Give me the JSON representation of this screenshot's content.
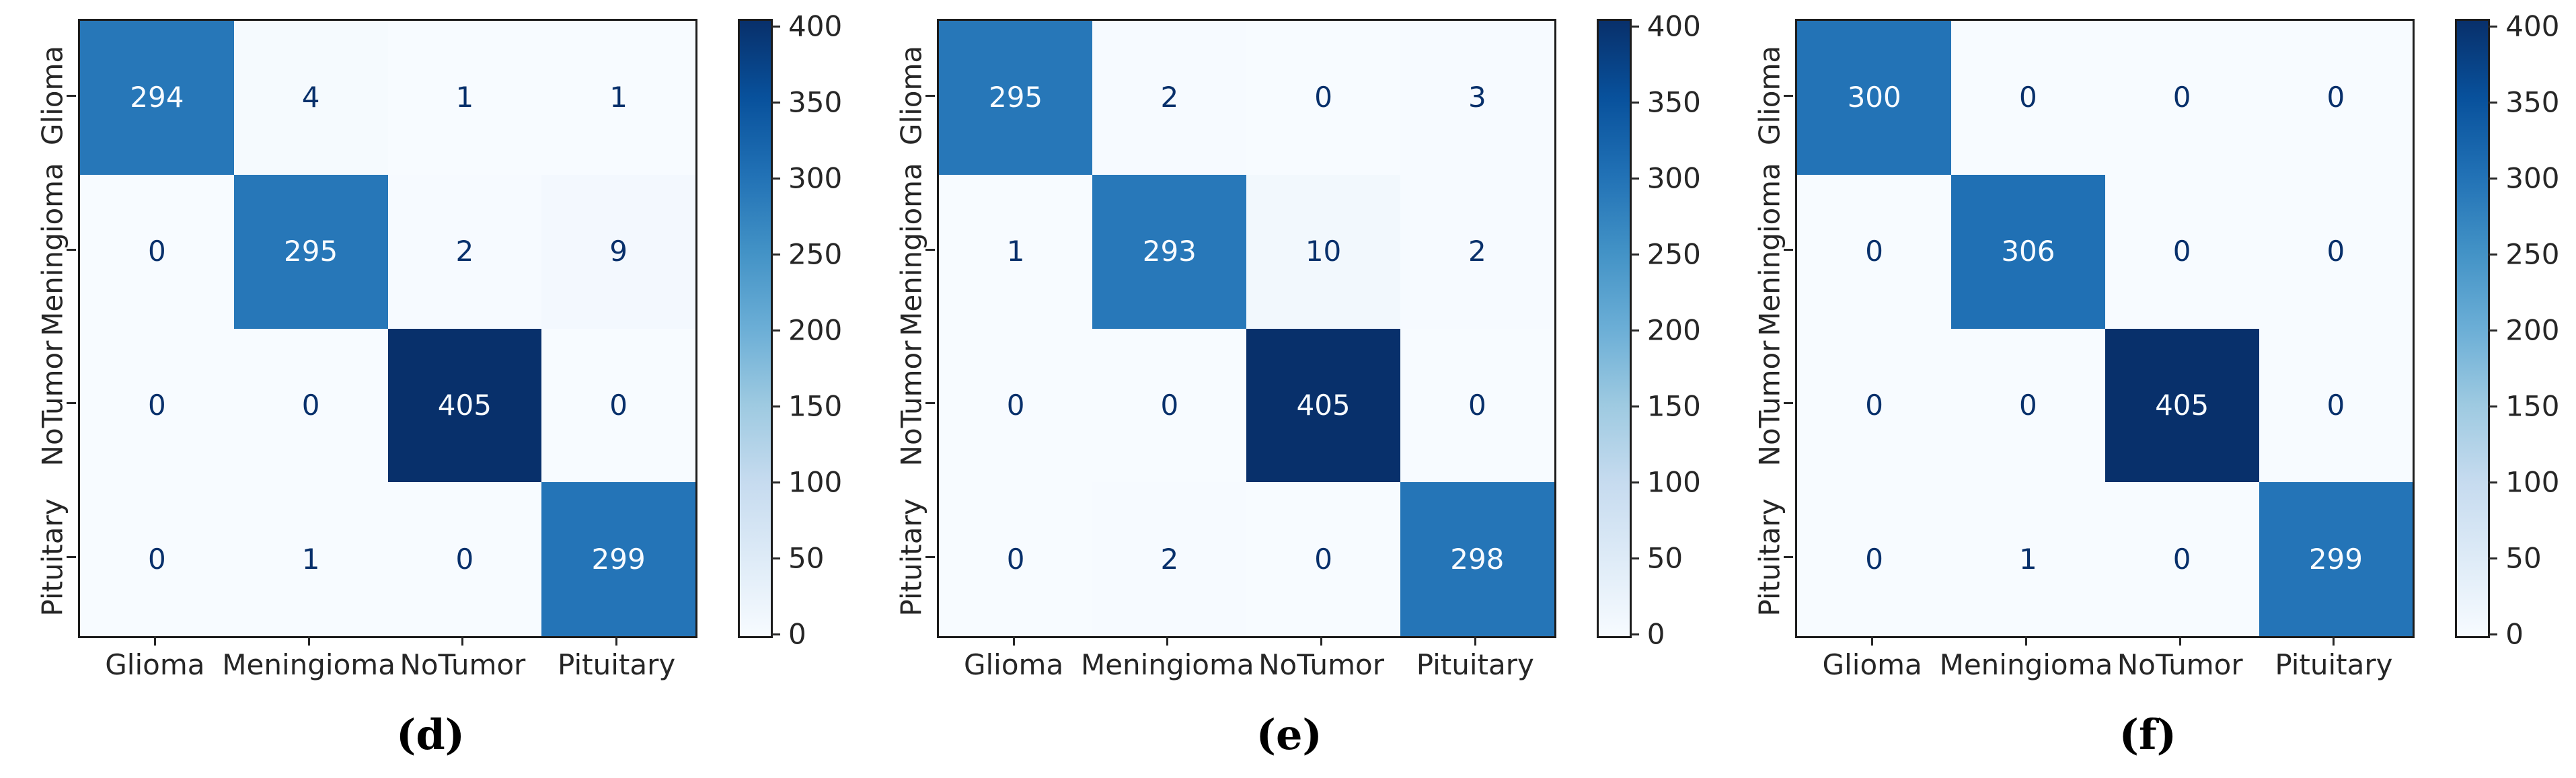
{
  "figure": {
    "classes": [
      "Glioma",
      "Meningioma",
      "NoTumor",
      "Pituitary"
    ],
    "colorbar": {
      "ticks": [
        400,
        350,
        300,
        250,
        200,
        150,
        100,
        50,
        0
      ],
      "vmin": 0,
      "vmax": 405
    },
    "colormap": {
      "name": "Blues",
      "anchors": [
        "#f7fbff",
        "#deebf7",
        "#c6dbef",
        "#9ecae1",
        "#6baed6",
        "#4292c6",
        "#2171b5",
        "#08519c",
        "#08306b"
      ]
    },
    "text_colors": {
      "light": "#f7fbff",
      "dark": "#08306b"
    },
    "panels": [
      {
        "caption": "(d)",
        "matrix": [
          [
            294,
            4,
            1,
            1
          ],
          [
            0,
            295,
            2,
            9
          ],
          [
            0,
            0,
            405,
            0
          ],
          [
            0,
            1,
            0,
            299
          ]
        ]
      },
      {
        "caption": "(e)",
        "matrix": [
          [
            295,
            2,
            0,
            3
          ],
          [
            1,
            293,
            10,
            2
          ],
          [
            0,
            0,
            405,
            0
          ],
          [
            0,
            2,
            0,
            298
          ]
        ]
      },
      {
        "caption": "(f)",
        "matrix": [
          [
            300,
            0,
            0,
            0
          ],
          [
            0,
            306,
            0,
            0
          ],
          [
            0,
            0,
            405,
            0
          ],
          [
            0,
            1,
            0,
            299
          ]
        ]
      }
    ]
  },
  "chart_data": [
    {
      "type": "heatmap",
      "title": "(d)",
      "x_categories": [
        "Glioma",
        "Meningioma",
        "NoTumor",
        "Pituitary"
      ],
      "y_categories": [
        "Glioma",
        "Meningioma",
        "NoTumor",
        "Pituitary"
      ],
      "values": [
        [
          294,
          4,
          1,
          1
        ],
        [
          0,
          295,
          2,
          9
        ],
        [
          0,
          0,
          405,
          0
        ],
        [
          0,
          1,
          0,
          299
        ]
      ],
      "colormap": "Blues",
      "colorbar_range": [
        0,
        405
      ],
      "colorbar_ticks": [
        0,
        50,
        100,
        150,
        200,
        250,
        300,
        350,
        400
      ],
      "legend_position": "right",
      "grid": false
    },
    {
      "type": "heatmap",
      "title": "(e)",
      "x_categories": [
        "Glioma",
        "Meningioma",
        "NoTumor",
        "Pituitary"
      ],
      "y_categories": [
        "Glioma",
        "Meningioma",
        "NoTumor",
        "Pituitary"
      ],
      "values": [
        [
          295,
          2,
          0,
          3
        ],
        [
          1,
          293,
          10,
          2
        ],
        [
          0,
          0,
          405,
          0
        ],
        [
          0,
          2,
          0,
          298
        ]
      ],
      "colormap": "Blues",
      "colorbar_range": [
        0,
        405
      ],
      "colorbar_ticks": [
        0,
        50,
        100,
        150,
        200,
        250,
        300,
        350,
        400
      ],
      "legend_position": "right",
      "grid": false
    },
    {
      "type": "heatmap",
      "title": "(f)",
      "x_categories": [
        "Glioma",
        "Meningioma",
        "NoTumor",
        "Pituitary"
      ],
      "y_categories": [
        "Glioma",
        "Meningioma",
        "NoTumor",
        "Pituitary"
      ],
      "values": [
        [
          300,
          0,
          0,
          0
        ],
        [
          0,
          306,
          0,
          0
        ],
        [
          0,
          0,
          405,
          0
        ],
        [
          0,
          1,
          0,
          299
        ]
      ],
      "colormap": "Blues",
      "colorbar_range": [
        0,
        405
      ],
      "colorbar_ticks": [
        0,
        50,
        100,
        150,
        200,
        250,
        300,
        350,
        400
      ],
      "legend_position": "right",
      "grid": false
    }
  ]
}
